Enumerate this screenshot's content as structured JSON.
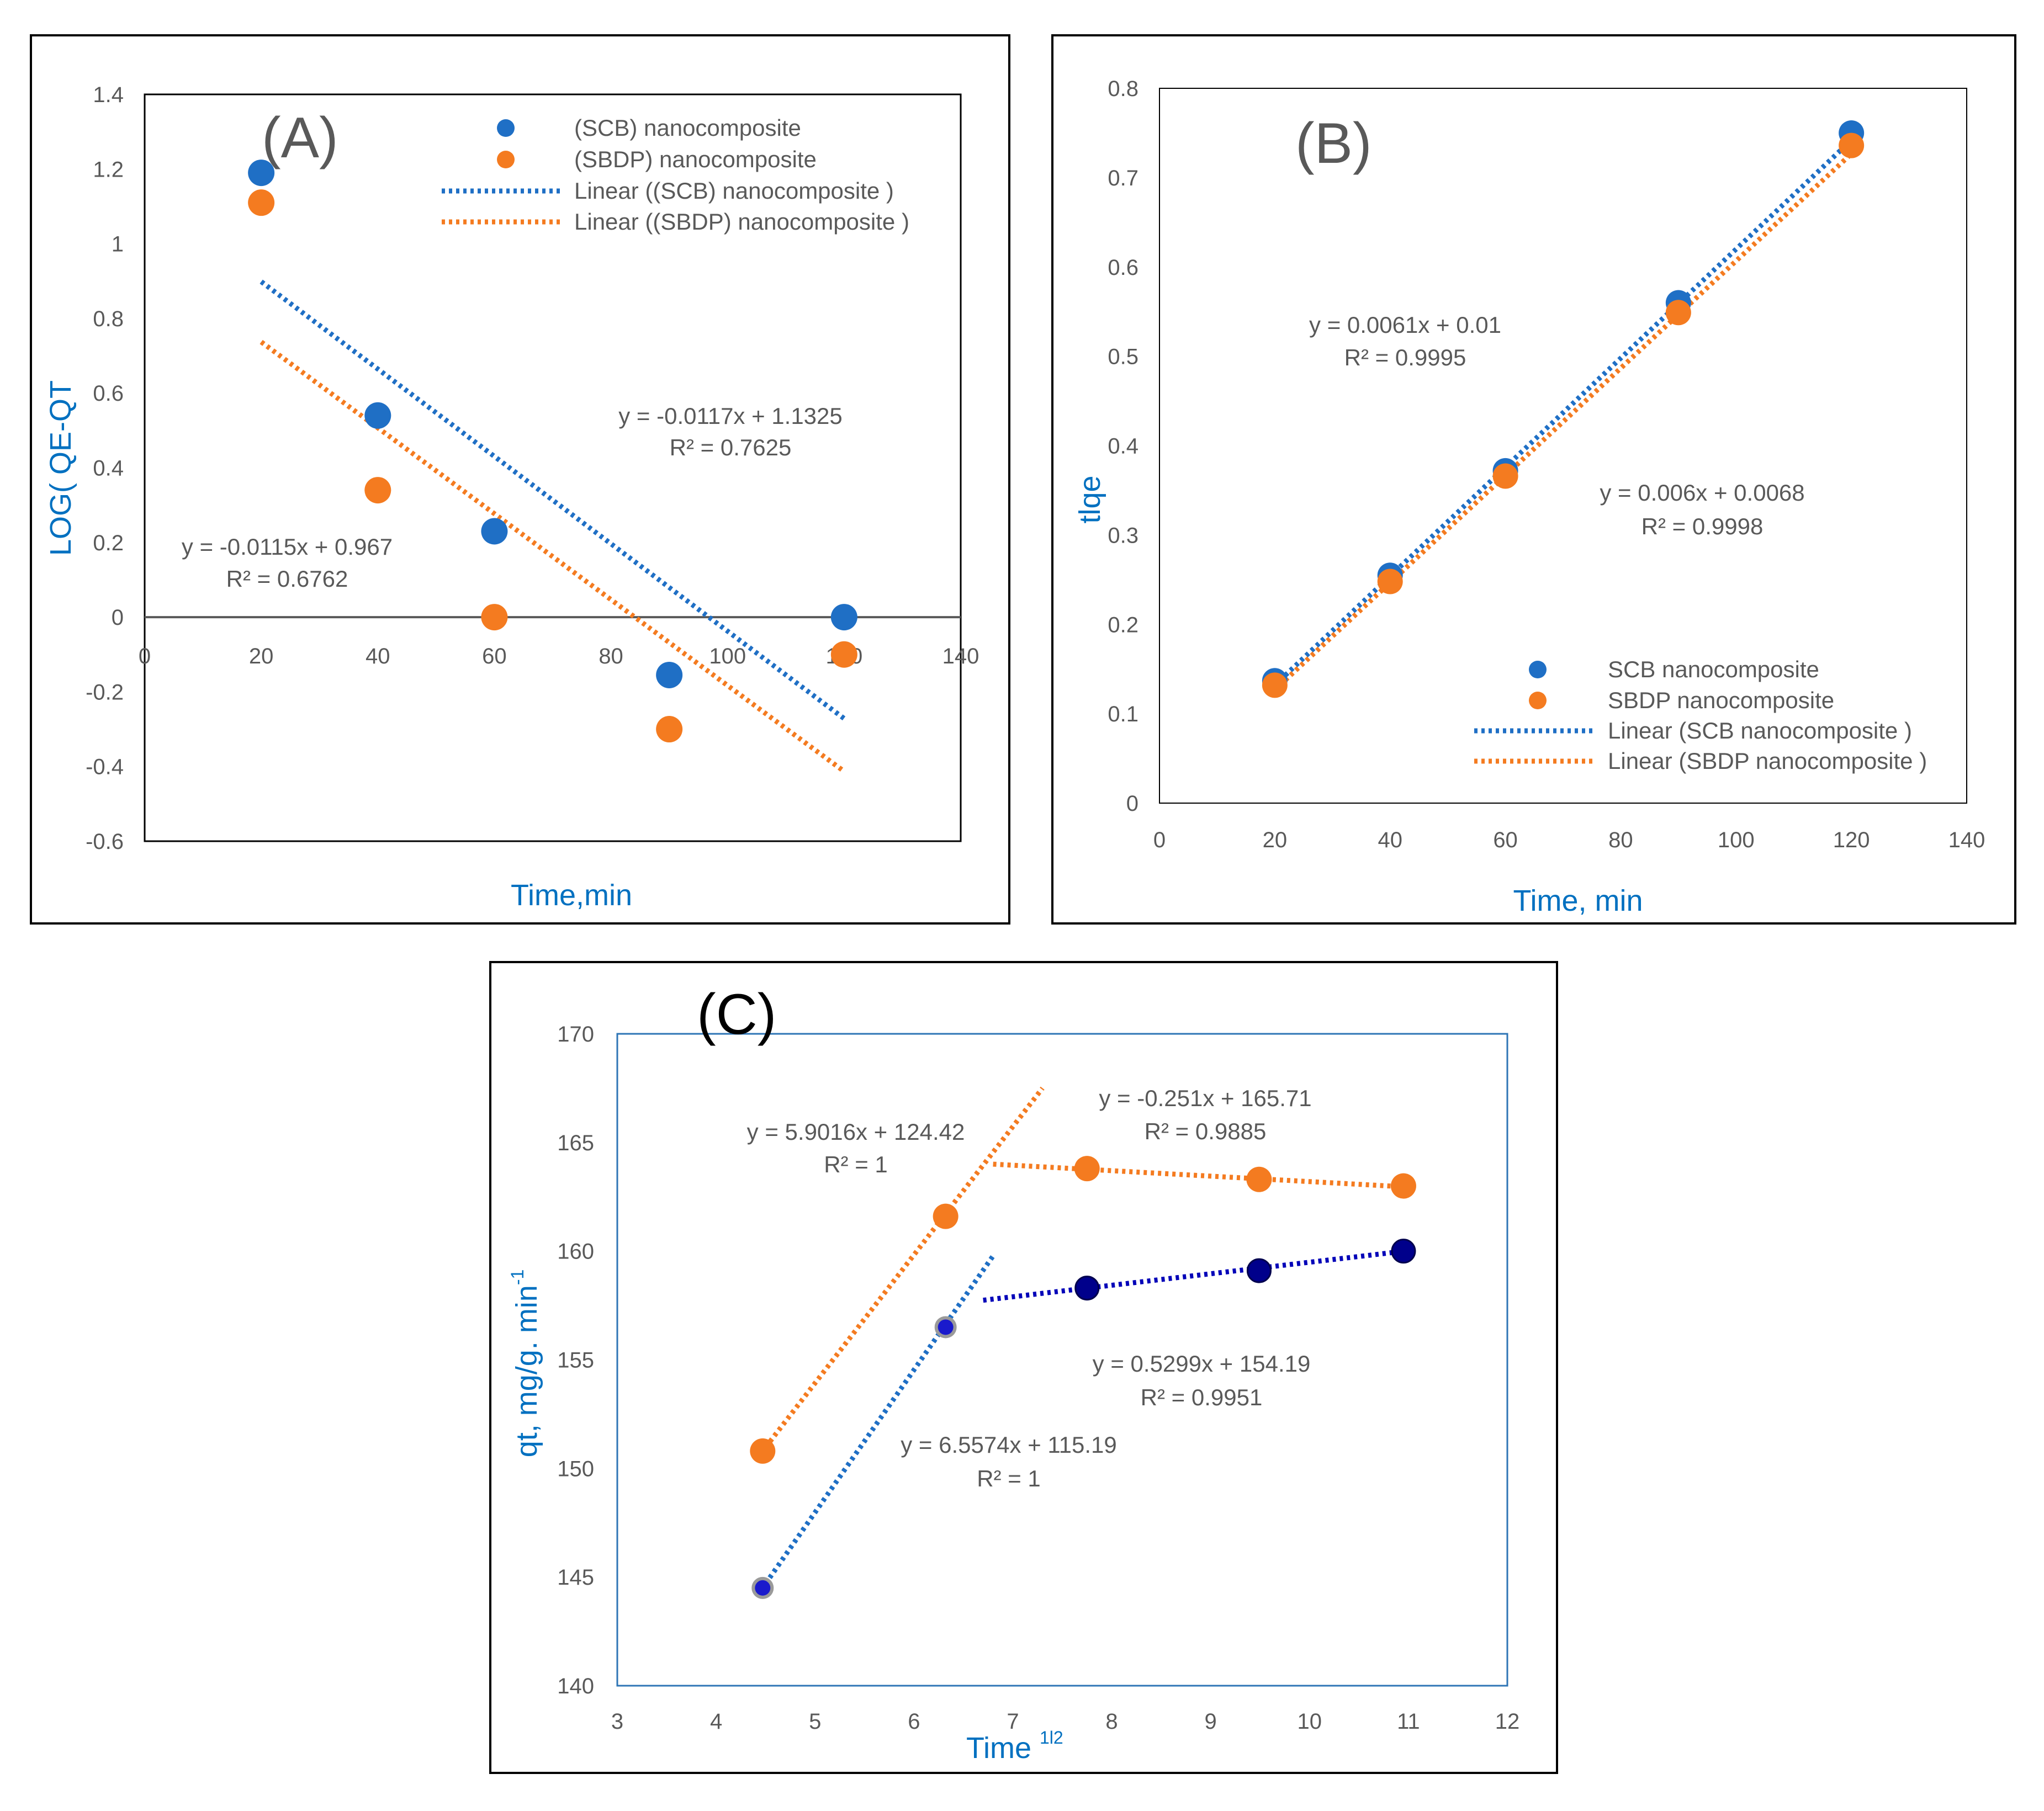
{
  "colors": {
    "scb": "#1f6fc5",
    "sbdp": "#f47b20",
    "scb_dark": "#00008b",
    "axis_label": "#0070c0",
    "text": "#595959",
    "fit_c_blue": "#0000b8"
  },
  "chart_data": [
    {
      "id": "A",
      "type": "scatter",
      "panel_label": "(A)",
      "xlabel": "Time,min",
      "ylabel": "LOG( QE-QT",
      "xlim": [
        0,
        140
      ],
      "ylim": [
        -0.6,
        1.4
      ],
      "x_ticks": [
        "0",
        "20",
        "40",
        "60",
        "80",
        "100",
        "120",
        "140"
      ],
      "y_ticks": [
        "1.4",
        "1.2",
        "1",
        "0.8",
        "0.6",
        "0.4",
        "0.2",
        "0",
        "-0.2",
        "-0.4",
        "-0.6"
      ],
      "legend_position": "top-right",
      "legend": [
        "(SCB) nanocomposite",
        "(SBDP) nanocomposite",
        "Linear ((SCB) nanocomposite )",
        "Linear ((SBDP) nanocomposite )"
      ],
      "series": [
        {
          "name": "(SCB) nanocomposite",
          "x": [
            20,
            40,
            60,
            90,
            120
          ],
          "y": [
            1.19,
            0.54,
            0.23,
            -0.155,
            0.0
          ]
        },
        {
          "name": "(SBDP) nanocomposite",
          "x": [
            20,
            40,
            60,
            90,
            120
          ],
          "y": [
            1.11,
            0.34,
            0.0,
            -0.3,
            -0.1
          ]
        }
      ],
      "fits": [
        {
          "series": "(SCB) nanocomposite",
          "slope": -0.0117,
          "intercept": 1.1325,
          "x_range": [
            20,
            120
          ],
          "equation": "y = -0.0117x + 1.1325",
          "r2": "R² = 0.7625"
        },
        {
          "series": "(SBDP) nanocomposite",
          "slope": -0.0115,
          "intercept": 0.967,
          "x_range": [
            20,
            120
          ],
          "equation": "y = -0.0115x + 0.967",
          "r2": "R² = 0.6762"
        }
      ]
    },
    {
      "id": "B",
      "type": "scatter",
      "panel_label": "(B)",
      "xlabel": "Time, min",
      "ylabel": "tlqe",
      "xlim": [
        0,
        140
      ],
      "ylim": [
        0,
        0.8
      ],
      "x_ticks": [
        "0",
        "20",
        "40",
        "60",
        "80",
        "100",
        "120",
        "140"
      ],
      "y_ticks": [
        "0.8",
        "0.7",
        "0.6",
        "0.5",
        "0.4",
        "0.3",
        "0.2",
        "0.1",
        "0"
      ],
      "legend_position": "bottom-right",
      "legend": [
        "SCB nanocomposite",
        "SBDP nanocomposite",
        "Linear (SCB nanocomposite )",
        "Linear (SBDP nanocomposite )"
      ],
      "series": [
        {
          "name": "SCB nanocomposite",
          "x": [
            20,
            40,
            60,
            90,
            120
          ],
          "y": [
            0.137,
            0.255,
            0.372,
            0.56,
            0.75
          ]
        },
        {
          "name": "SBDP nanocomposite",
          "x": [
            20,
            40,
            60,
            90,
            120
          ],
          "y": [
            0.132,
            0.248,
            0.366,
            0.549,
            0.736
          ]
        }
      ],
      "fits": [
        {
          "series": "SCB nanocomposite",
          "slope": 0.0061,
          "intercept": 0.01,
          "x_range": [
            20,
            120
          ],
          "equation": "y = 0.0061x + 0.01",
          "r2": "R² = 0.9995"
        },
        {
          "series": "SBDP nanocomposite",
          "slope": 0.006,
          "intercept": 0.0068,
          "x_range": [
            20,
            120
          ],
          "equation": "y = 0.006x + 0.0068",
          "r2": "R² = 0.9998"
        }
      ]
    },
    {
      "id": "C",
      "type": "scatter",
      "panel_label": "(C)",
      "xlabel": "Time",
      "xlabel_sup": "1l2",
      "ylabel": "qt, mg/g. min",
      "ylabel_sup": "-1",
      "xlim": [
        3,
        12
      ],
      "ylim": [
        140,
        170
      ],
      "x_ticks": [
        "3",
        "4",
        "5",
        "6",
        "7",
        "8",
        "9",
        "10",
        "11",
        "12"
      ],
      "y_ticks": [
        "170",
        "165",
        "160",
        "155",
        "150",
        "145",
        "140"
      ],
      "series": [
        {
          "name": "SCB nanocomposite",
          "x": [
            4.47,
            6.32,
            7.75,
            9.49,
            10.95
          ],
          "y": [
            144.5,
            156.5,
            158.3,
            159.1,
            160.0
          ]
        },
        {
          "name": "SBDP nanocomposite",
          "x": [
            4.47,
            6.32,
            7.75,
            9.49,
            10.95
          ],
          "y": [
            150.8,
            161.6,
            163.8,
            163.3,
            163.0
          ]
        }
      ],
      "fits": [
        {
          "series": "SBDP nanocomposite",
          "slope": 5.9016,
          "intercept": 124.42,
          "x_range": [
            4.5,
            7.3
          ],
          "equation": "y = 5.9016x + 124.42",
          "r2": "R² = 1"
        },
        {
          "series": "SBDP nanocomposite",
          "slope": -0.251,
          "intercept": 165.71,
          "x_range": [
            6.8,
            11.0
          ],
          "equation": "y = -0.251x + 165.71",
          "r2": "R² = 0.9885"
        },
        {
          "series": "SCB nanocomposite",
          "slope": 6.5574,
          "intercept": 115.19,
          "x_range": [
            4.5,
            6.8
          ],
          "equation": "y = 6.5574x + 115.19",
          "r2": "R² = 1"
        },
        {
          "series": "SCB nanocomposite",
          "slope": 0.5299,
          "intercept": 154.19,
          "x_range": [
            6.7,
            11.0
          ],
          "equation": "y = 0.5299x + 154.19",
          "r2": "R² = 0.9951"
        }
      ]
    }
  ]
}
